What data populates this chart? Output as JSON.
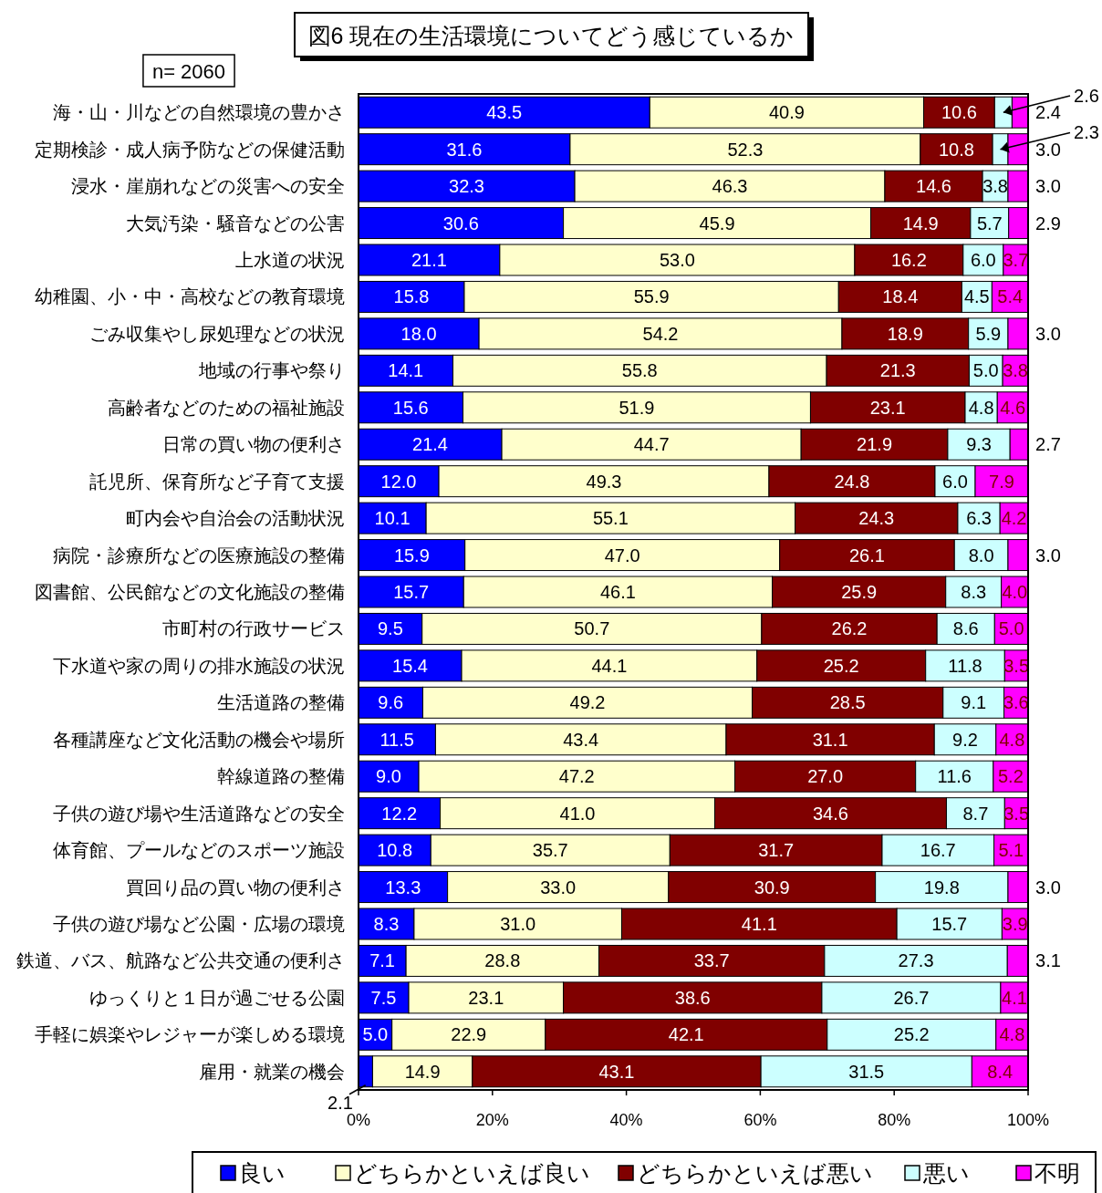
{
  "chart_data": {
    "type": "bar",
    "orientation": "horizontal",
    "stacked": true,
    "title": "図6 現在の生活環境についてどう感じているか",
    "annotations": [
      "n= 2060"
    ],
    "categories": [
      "海・山・川などの自然環境の豊かさ",
      "定期検診・成人病予防などの保健活動",
      "浸水・崖崩れなどの災害への安全",
      "大気汚染・騒音などの公害",
      "上水道の状況",
      "幼稚園、小・中・高校などの教育環境",
      "ごみ収集やし尿処理などの状況",
      "地域の行事や祭り",
      "高齢者などのための福祉施設",
      "日常の買い物の便利さ",
      "託児所、保育所など子育て支援",
      "町内会や自治会の活動状況",
      "病院・診療所などの医療施設の整備",
      "図書館、公民館などの文化施設の整備",
      "市町村の行政サービス",
      "下水道や家の周りの排水施設の状況",
      "生活道路の整備",
      "各種講座など文化活動の機会や場所",
      "幹線道路の整備",
      "子供の遊び場や生活道路などの安全",
      "体育館、プールなどのスポーツ施設",
      "買回り品の買い物の便利さ",
      "子供の遊び場など公園・広場の環境",
      "鉄道、バス、航路など公共交通の便利さ",
      "ゆっくりと１日が過ごせる公園",
      "手軽に娯楽やレジャーが楽しめる環境",
      "雇用・就業の機会"
    ],
    "series": [
      {
        "name": "良い",
        "color": "#0000ff",
        "values": [
          43.5,
          31.6,
          32.3,
          30.6,
          21.1,
          15.8,
          18.0,
          14.1,
          15.6,
          21.4,
          12.0,
          10.1,
          15.9,
          15.7,
          9.5,
          15.4,
          9.6,
          11.5,
          9.0,
          12.2,
          10.8,
          13.3,
          8.3,
          7.1,
          7.5,
          5.0,
          2.1
        ],
        "value_labels": [
          "43.5",
          "31.6",
          "32.3",
          "30.6",
          "21.1",
          "15.8",
          "18.0",
          "14.1",
          "15.6",
          "21.4",
          "12.0",
          "10.1",
          "15.9",
          "15.7",
          "9.5",
          "15.4",
          "9.6",
          "11.5",
          "9.0",
          "12.2",
          "10.8",
          "13.3",
          "8.3",
          "7.1",
          "7.5",
          "5.0",
          "2.1"
        ]
      },
      {
        "name": "どちらかといえば良い",
        "color": "#ffffcc",
        "values": [
          40.9,
          52.3,
          46.3,
          45.9,
          53.0,
          55.9,
          54.2,
          55.8,
          51.9,
          44.7,
          49.3,
          55.1,
          47.0,
          46.1,
          50.7,
          44.1,
          49.2,
          43.4,
          47.2,
          41.0,
          35.7,
          33.0,
          31.0,
          28.8,
          23.1,
          22.9,
          14.9
        ],
        "value_labels": [
          "40.9",
          "52.3",
          "46.3",
          "45.9",
          "53.0",
          "55.9",
          "54.2",
          "55.8",
          "51.9",
          "44.7",
          "49.3",
          "55.1",
          "47.0",
          "46.1",
          "50.7",
          "44.1",
          "49.2",
          "43.4",
          "47.2",
          "41.0",
          "35.7",
          "33.0",
          "31.0",
          "28.8",
          "23.1",
          "22.9",
          "14.9"
        ]
      },
      {
        "name": "どちらかといえば悪い",
        "color": "#800000",
        "values": [
          10.6,
          10.8,
          14.6,
          14.9,
          16.2,
          18.4,
          18.9,
          21.3,
          23.1,
          21.9,
          24.8,
          24.3,
          26.1,
          25.9,
          26.2,
          25.2,
          28.5,
          31.1,
          27.0,
          34.6,
          31.7,
          30.9,
          41.1,
          33.7,
          38.6,
          42.1,
          43.1
        ],
        "value_labels": [
          "10.6",
          "10.8",
          "14.6",
          "14.9",
          "16.2",
          "18.4",
          "18.9",
          "21.3",
          "23.1",
          "21.9",
          "24.8",
          "24.3",
          "26.1",
          "25.9",
          "26.2",
          "25.2",
          "28.5",
          "31.1",
          "27.0",
          "34.6",
          "31.7",
          "30.9",
          "41.1",
          "33.7",
          "38.6",
          "42.1",
          "43.1"
        ]
      },
      {
        "name": "悪い",
        "color": "#ccffff",
        "values": [
          2.6,
          2.3,
          3.8,
          5.7,
          6.0,
          4.5,
          5.9,
          5.0,
          4.8,
          9.3,
          6.0,
          6.3,
          8.0,
          8.3,
          8.6,
          11.8,
          9.1,
          9.2,
          11.6,
          8.7,
          16.7,
          19.8,
          15.7,
          27.3,
          26.7,
          25.2,
          31.5
        ],
        "value_labels": [
          "2.6",
          "2.3",
          "3.8",
          "5.7",
          "6.0",
          "4.5",
          "5.9",
          "5.0",
          "4.8",
          "9.3",
          "6.0",
          "6.3",
          "8.0",
          "8.3",
          "8.6",
          "11.8",
          "9.1",
          "9.2",
          "11.6",
          "8.7",
          "16.7",
          "19.8",
          "15.7",
          "27.3",
          "26.7",
          "25.2",
          "31.5"
        ]
      },
      {
        "name": "不明",
        "color": "#ff00ff",
        "values": [
          2.4,
          3.0,
          3.0,
          2.9,
          3.7,
          5.4,
          3.0,
          3.8,
          4.6,
          2.7,
          7.9,
          4.2,
          3.0,
          4.0,
          5.0,
          3.5,
          3.6,
          4.8,
          5.2,
          3.5,
          5.1,
          3.0,
          3.9,
          3.1,
          4.1,
          4.8,
          8.4
        ],
        "value_labels": [
          "2.4",
          "3.0",
          "3.0",
          "2.9",
          "3.7",
          "5.4",
          "3.0",
          "3.8",
          "4.6",
          "2.7",
          "7.9",
          "4.2",
          "3.0",
          "4.0",
          "5.0",
          "3.5",
          "3.6",
          "4.8",
          "5.2",
          "3.5",
          "5.1",
          "3.0",
          "3.9",
          "3.1",
          "4.1",
          "4.8",
          "8.4"
        ]
      }
    ],
    "xlim": [
      0,
      100
    ],
    "xticks": [
      {
        "value": 0,
        "label": "0%"
      },
      {
        "value": 20,
        "label": "20%"
      },
      {
        "value": 40,
        "label": "40%"
      },
      {
        "value": 60,
        "label": "60%"
      },
      {
        "value": 80,
        "label": "80%"
      },
      {
        "value": 100,
        "label": "100%"
      }
    ],
    "legend": "bottom",
    "grid": false
  }
}
